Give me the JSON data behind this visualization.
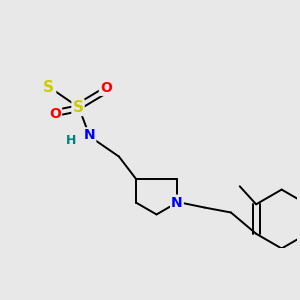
{
  "background_color": "#e8e8e8",
  "bond_color": "#000000",
  "atom_colors": {
    "S": "#cccc00",
    "O": "#ff0000",
    "N_sulfonamide": "#0000ff",
    "H": "#008080",
    "N_pyrrolidine": "#0000ff",
    "C": "#000000"
  },
  "figsize": [
    3.0,
    3.0
  ],
  "dpi": 100,
  "xlim": [
    0,
    10
  ],
  "ylim": [
    0,
    10
  ]
}
